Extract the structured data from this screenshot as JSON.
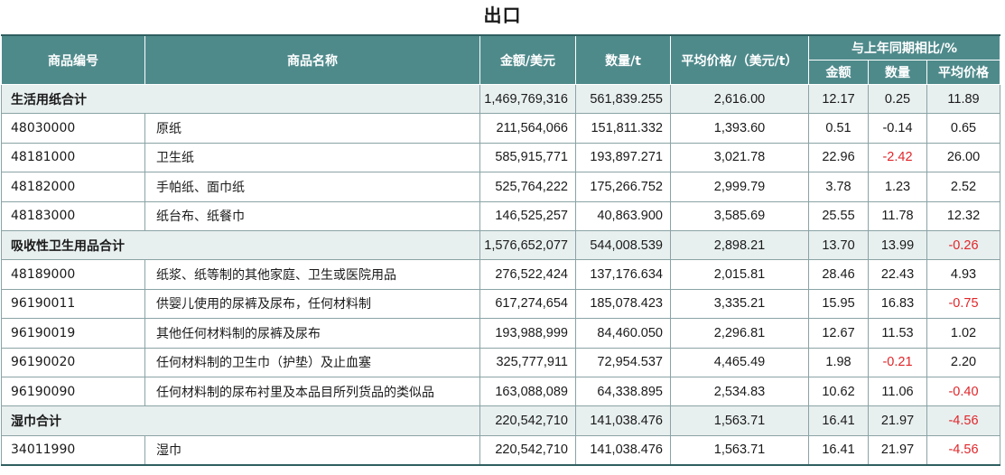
{
  "title": "出口",
  "header": {
    "code": "商品编号",
    "name": "商品名称",
    "amount": "金额/美元",
    "quantity": "数量/t",
    "avg_price": "平均价格/（美元/t）",
    "yoy_group": "与上年同期相比/%",
    "yoy_amount": "金额",
    "yoy_quantity": "数量",
    "yoy_avg_price": "平均价格"
  },
  "rows": [
    {
      "total": true,
      "name": "生活用纸合计",
      "amount": "1,469,769,316",
      "quantity": "561,839.255",
      "avg": "2,616.00",
      "d_amount": "12.17",
      "d_quantity": "0.25",
      "d_avg": "11.89"
    },
    {
      "code": "48030000",
      "name": "原纸",
      "amount": "211,564,066",
      "quantity": "151,811.332",
      "avg": "1,393.60",
      "d_amount": "0.51",
      "d_quantity": "-0.14",
      "d_avg": "0.65"
    },
    {
      "code": "48181000",
      "name": "卫生纸",
      "amount": "585,915,771",
      "quantity": "193,897.271",
      "avg": "3,021.78",
      "d_amount": "22.96",
      "d_quantity": "-2.42",
      "d_avg": "26.00",
      "neg_quantity": true
    },
    {
      "code": "48182000",
      "name": "手帕纸、面巾纸",
      "amount": "525,764,222",
      "quantity": "175,266.752",
      "avg": "2,999.79",
      "d_amount": "3.78",
      "d_quantity": "1.23",
      "d_avg": "2.52"
    },
    {
      "code": "48183000",
      "name": "纸台布、纸餐巾",
      "amount": "146,525,257",
      "quantity": "40,863.900",
      "avg": "3,585.69",
      "d_amount": "25.55",
      "d_quantity": "11.78",
      "d_avg": "12.32"
    },
    {
      "total": true,
      "name": "吸收性卫生用品合计",
      "amount": "1,576,652,077",
      "quantity": "544,008.539",
      "avg": "2,898.21",
      "d_amount": "13.70",
      "d_quantity": "13.99",
      "d_avg": "-0.26",
      "neg_avg": true
    },
    {
      "code": "48189000",
      "name": "纸浆、纸等制的其他家庭、卫生或医院用品",
      "amount": "276,522,424",
      "quantity": "137,176.634",
      "avg": "2,015.81",
      "d_amount": "28.46",
      "d_quantity": "22.43",
      "d_avg": "4.93"
    },
    {
      "code": "96190011",
      "name": "供婴儿使用的尿裤及尿布，任何材料制",
      "amount": "617,274,654",
      "quantity": "185,078.423",
      "avg": "3,335.21",
      "d_amount": "15.95",
      "d_quantity": "16.83",
      "d_avg": "-0.75",
      "neg_avg": true
    },
    {
      "code": "96190019",
      "name": "其他任何材料制的尿裤及尿布",
      "amount": "193,988,999",
      "quantity": "84,460.050",
      "avg": "2,296.81",
      "d_amount": "12.67",
      "d_quantity": "11.53",
      "d_avg": "1.02"
    },
    {
      "code": "96190020",
      "name": "任何材料制的卫生巾（护垫）及止血塞",
      "amount": "325,777,911",
      "quantity": "72,954.537",
      "avg": "4,465.49",
      "d_amount": "1.98",
      "d_quantity": "-0.21",
      "d_avg": "2.20",
      "neg_quantity": true
    },
    {
      "code": "96190090",
      "name": "任何材料制的尿布衬里及本品目所列货品的类似品",
      "amount": "163,088,089",
      "quantity": "64,338.895",
      "avg": "2,534.83",
      "d_amount": "10.62",
      "d_quantity": "11.06",
      "d_avg": "-0.40",
      "neg_avg": true
    },
    {
      "total": true,
      "name": "湿巾合计",
      "amount": "220,542,710",
      "quantity": "141,038.476",
      "avg": "1,563.71",
      "d_amount": "16.41",
      "d_quantity": "21.97",
      "d_avg": "-4.56",
      "neg_avg": true
    },
    {
      "code": "34011990",
      "name": "湿巾",
      "amount": "220,542,710",
      "quantity": "141,038.476",
      "avg": "1,563.71",
      "d_amount": "16.41",
      "d_quantity": "21.97",
      "d_avg": "-4.56",
      "neg_avg": true
    }
  ],
  "colors": {
    "header_bg": "#4f8a8b",
    "total_row_bg": "#e8efef",
    "negative": "#e0262a"
  }
}
